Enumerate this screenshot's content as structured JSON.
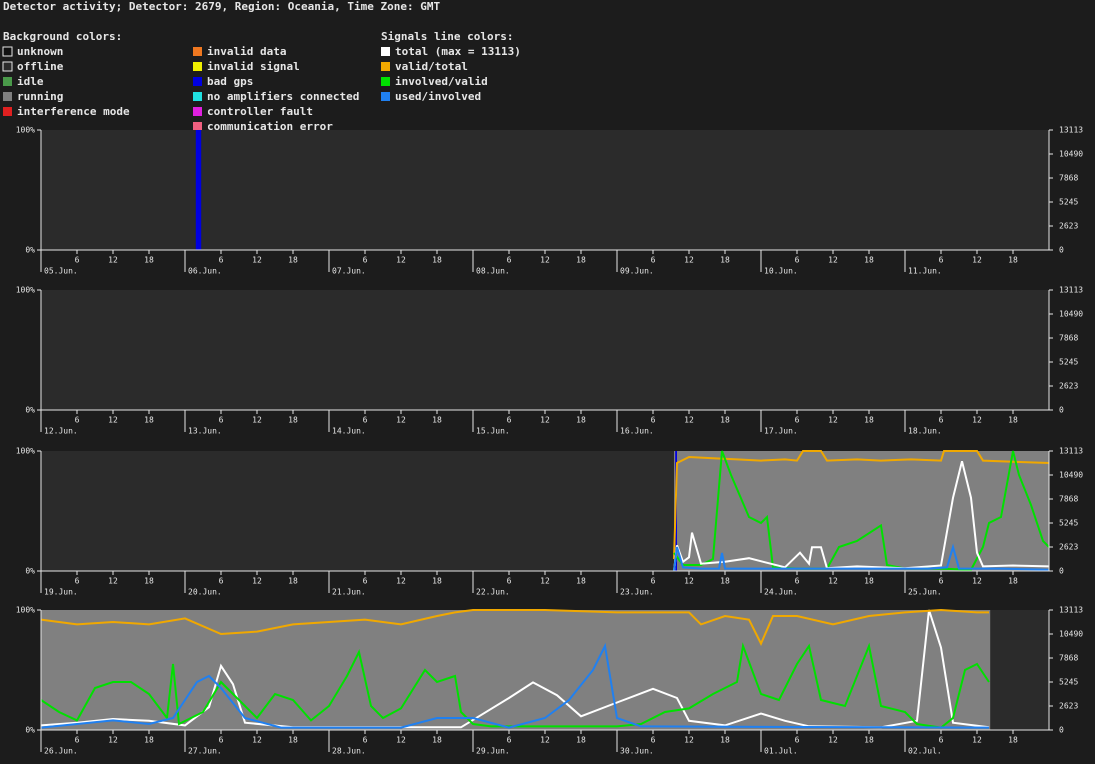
{
  "title": "Detector activity; Detector: 2679, Region: Oceania, Time Zone: GMT",
  "legend": {
    "background_title": "Background colors:",
    "background": [
      {
        "name": "unknown",
        "color": "#111111"
      },
      {
        "name": "offline",
        "color": "#2b2b2b"
      },
      {
        "name": "idle",
        "color": "#4a9a4a"
      },
      {
        "name": "running",
        "color": "#808080"
      },
      {
        "name": "interference mode",
        "color": "#e02020"
      },
      {
        "name": "invalid data",
        "color": "#f07820"
      },
      {
        "name": "invalid signal",
        "color": "#f0f000"
      },
      {
        "name": "bad gps",
        "color": "#0000e0"
      },
      {
        "name": "no amplifiers connected",
        "color": "#20e0e0"
      },
      {
        "name": "controller fault",
        "color": "#e020e0"
      },
      {
        "name": "communication error",
        "color": "#f06080"
      }
    ],
    "signals_title": "Signals line colors:"
  },
  "chart_data": [
    {
      "type": "line",
      "xlim": [
        0,
        168
      ],
      "ylim": [
        0,
        100
      ],
      "y2lim": [
        0,
        13113
      ],
      "yticks": [
        {
          "value": 0,
          "label": "0%"
        },
        {
          "value": 100,
          "label": "100%"
        }
      ],
      "y2ticks": [
        0,
        2623,
        5245,
        7868,
        10490,
        13113
      ],
      "xticks": [
        {
          "value": 0,
          "label": "05.Jun."
        },
        {
          "value": 24,
          "label": "06.Jun."
        },
        {
          "value": 48,
          "label": "07.Jun."
        },
        {
          "value": 72,
          "label": "08.Jun."
        },
        {
          "value": 96,
          "label": "09.Jun."
        },
        {
          "value": 120,
          "label": "10.Jun."
        },
        {
          "value": 144,
          "label": "11.Jun."
        }
      ],
      "minor_xticks": [
        {
          "value": 6,
          "label": "6"
        },
        {
          "value": 12,
          "label": "12"
        },
        {
          "value": 18,
          "label": "18"
        },
        {
          "value": 30,
          "label": "6"
        },
        {
          "value": 36,
          "label": "12"
        },
        {
          "value": 42,
          "label": "18"
        },
        {
          "value": 54,
          "label": "6"
        },
        {
          "value": 60,
          "label": "12"
        },
        {
          "value": 66,
          "label": "18"
        },
        {
          "value": 78,
          "label": "6"
        },
        {
          "value": 84,
          "label": "12"
        },
        {
          "value": 90,
          "label": "18"
        },
        {
          "value": 102,
          "label": "6"
        },
        {
          "value": 108,
          "label": "12"
        },
        {
          "value": 114,
          "label": "18"
        },
        {
          "value": 126,
          "label": "6"
        },
        {
          "value": 132,
          "label": "12"
        },
        {
          "value": 138,
          "label": "18"
        },
        {
          "value": 150,
          "label": "6"
        },
        {
          "value": 156,
          "label": "12"
        },
        {
          "value": 162,
          "label": "18"
        }
      ],
      "segments": [
        {
          "start": 25.8,
          "end": 26.7,
          "color": "#0000e0"
        }
      ],
      "series": []
    },
    {
      "type": "line",
      "xlim": [
        0,
        168
      ],
      "ylim": [
        0,
        100
      ],
      "y2lim": [
        0,
        13113
      ],
      "yticks": [
        {
          "value": 0,
          "label": "0%"
        },
        {
          "value": 100,
          "label": "100%"
        }
      ],
      "y2ticks": [
        0,
        2623,
        5245,
        7868,
        10490,
        13113
      ],
      "xticks": [
        {
          "value": 0,
          "label": "12.Jun."
        },
        {
          "value": 24,
          "label": "13.Jun."
        },
        {
          "value": 48,
          "label": "14.Jun."
        },
        {
          "value": 72,
          "label": "15.Jun."
        },
        {
          "value": 96,
          "label": "16.Jun."
        },
        {
          "value": 120,
          "label": "17.Jun."
        },
        {
          "value": 144,
          "label": "18.Jun."
        }
      ],
      "minor_xticks": [
        {
          "value": 6,
          "label": "6"
        },
        {
          "value": 12,
          "label": "12"
        },
        {
          "value": 18,
          "label": "18"
        },
        {
          "value": 30,
          "label": "6"
        },
        {
          "value": 36,
          "label": "12"
        },
        {
          "value": 42,
          "label": "18"
        },
        {
          "value": 54,
          "label": "6"
        },
        {
          "value": 60,
          "label": "12"
        },
        {
          "value": 66,
          "label": "18"
        },
        {
          "value": 78,
          "label": "6"
        },
        {
          "value": 84,
          "label": "12"
        },
        {
          "value": 90,
          "label": "18"
        },
        {
          "value": 102,
          "label": "6"
        },
        {
          "value": 108,
          "label": "12"
        },
        {
          "value": 114,
          "label": "18"
        },
        {
          "value": 126,
          "label": "6"
        },
        {
          "value": 132,
          "label": "12"
        },
        {
          "value": 138,
          "label": "18"
        },
        {
          "value": 150,
          "label": "6"
        },
        {
          "value": 156,
          "label": "12"
        },
        {
          "value": 162,
          "label": "18"
        }
      ],
      "segments": [],
      "series": []
    },
    {
      "type": "line",
      "xlim": [
        0,
        168
      ],
      "ylim": [
        0,
        100
      ],
      "y2lim": [
        0,
        13113
      ],
      "yticks": [
        {
          "value": 0,
          "label": "0%"
        },
        {
          "value": 100,
          "label": "100%"
        }
      ],
      "y2ticks": [
        0,
        2623,
        5245,
        7868,
        10490,
        13113
      ],
      "xticks": [
        {
          "value": 0,
          "label": "19.Jun."
        },
        {
          "value": 24,
          "label": "20.Jun."
        },
        {
          "value": 48,
          "label": "21.Jun."
        },
        {
          "value": 72,
          "label": "22.Jun."
        },
        {
          "value": 96,
          "label": "23.Jun."
        },
        {
          "value": 120,
          "label": "24.Jun."
        },
        {
          "value": 144,
          "label": "25.Jun."
        }
      ],
      "minor_xticks": [
        {
          "value": 6,
          "label": "6"
        },
        {
          "value": 12,
          "label": "12"
        },
        {
          "value": 18,
          "label": "18"
        },
        {
          "value": 30,
          "label": "6"
        },
        {
          "value": 36,
          "label": "12"
        },
        {
          "value": 42,
          "label": "18"
        },
        {
          "value": 54,
          "label": "6"
        },
        {
          "value": 60,
          "label": "12"
        },
        {
          "value": 66,
          "label": "18"
        },
        {
          "value": 78,
          "label": "6"
        },
        {
          "value": 84,
          "label": "12"
        },
        {
          "value": 90,
          "label": "18"
        },
        {
          "value": 102,
          "label": "6"
        },
        {
          "value": 108,
          "label": "12"
        },
        {
          "value": 114,
          "label": "18"
        },
        {
          "value": 126,
          "label": "6"
        },
        {
          "value": 132,
          "label": "12"
        },
        {
          "value": 138,
          "label": "18"
        },
        {
          "value": 150,
          "label": "6"
        },
        {
          "value": 156,
          "label": "12"
        },
        {
          "value": 162,
          "label": "18"
        }
      ],
      "segments": [
        {
          "start": 105.5,
          "end": 168,
          "color": "#808080"
        },
        {
          "start": 105.7,
          "end": 106.0,
          "color": "#0000e0"
        }
      ],
      "series": [
        {
          "name": "valid/total",
          "color": "#f0a800",
          "x": [
            105.5,
            106,
            108,
            112,
            116,
            120,
            124,
            126,
            127,
            130,
            131,
            136,
            140,
            145,
            150,
            150.5,
            156,
            157,
            162,
            168
          ],
          "values": [
            10,
            90,
            95,
            94,
            93,
            92,
            93,
            92,
            100,
            100,
            92,
            93,
            92,
            93,
            92,
            100,
            100,
            92,
            91,
            90
          ]
        },
        {
          "name": "involved/valid",
          "color": "#00e000",
          "x": [
            105.5,
            107,
            110,
            112,
            113.5,
            115,
            118,
            120,
            121,
            122,
            126,
            131,
            133,
            136,
            140,
            141,
            144,
            150,
            155,
            157,
            158,
            160,
            162,
            163,
            165,
            167,
            168
          ],
          "values": [
            15,
            5,
            5,
            10,
            100,
            80,
            45,
            40,
            45,
            3,
            2,
            2,
            20,
            25,
            38,
            5,
            2,
            2,
            1,
            20,
            40,
            45,
            100,
            80,
            55,
            25,
            20
          ]
        },
        {
          "name": "total (max = 13113)",
          "color": "#ffffff",
          "axis": "y2",
          "x": [
            105.5,
            106,
            107,
            108,
            108.5,
            110,
            114,
            118,
            124,
            126.5,
            128,
            128.5,
            130,
            131,
            136,
            144,
            150,
            152,
            153.5,
            155,
            156,
            157,
            162,
            168
          ],
          "values": [
            0,
            2800,
            1000,
            1500,
            4200,
            800,
            1000,
            1400,
            400,
            2000,
            800,
            2600,
            2600,
            300,
            500,
            300,
            600,
            8000,
            12000,
            8000,
            2000,
            500,
            600,
            500
          ]
        },
        {
          "name": "used/involved",
          "color": "#2080f0",
          "x": [
            105.5,
            106,
            107,
            110,
            113,
            113.5,
            114,
            120,
            140,
            148,
            151,
            152,
            153,
            160,
            168
          ],
          "values": [
            0,
            20,
            3,
            2,
            2,
            15,
            2,
            2,
            2,
            2,
            3,
            20,
            2,
            2,
            1
          ]
        }
      ]
    },
    {
      "type": "line",
      "xlim": [
        0,
        168
      ],
      "ylim": [
        0,
        100
      ],
      "y2lim": [
        0,
        13113
      ],
      "yticks": [
        {
          "value": 0,
          "label": "0%"
        },
        {
          "value": 100,
          "label": "100%"
        }
      ],
      "y2ticks": [
        0,
        2623,
        5245,
        7868,
        10490,
        13113
      ],
      "xticks": [
        {
          "value": 0,
          "label": "26.Jun."
        },
        {
          "value": 24,
          "label": "27.Jun."
        },
        {
          "value": 48,
          "label": "28.Jun."
        },
        {
          "value": 72,
          "label": "29.Jun."
        },
        {
          "value": 96,
          "label": "30.Jun."
        },
        {
          "value": 120,
          "label": "01.Jul."
        },
        {
          "value": 144,
          "label": "02.Jul."
        }
      ],
      "minor_xticks": [
        {
          "value": 6,
          "label": "6"
        },
        {
          "value": 12,
          "label": "12"
        },
        {
          "value": 18,
          "label": "18"
        },
        {
          "value": 30,
          "label": "6"
        },
        {
          "value": 36,
          "label": "12"
        },
        {
          "value": 42,
          "label": "18"
        },
        {
          "value": 54,
          "label": "6"
        },
        {
          "value": 60,
          "label": "12"
        },
        {
          "value": 66,
          "label": "18"
        },
        {
          "value": 78,
          "label": "6"
        },
        {
          "value": 84,
          "label": "12"
        },
        {
          "value": 90,
          "label": "18"
        },
        {
          "value": 102,
          "label": "6"
        },
        {
          "value": 108,
          "label": "12"
        },
        {
          "value": 114,
          "label": "18"
        },
        {
          "value": 126,
          "label": "6"
        },
        {
          "value": 132,
          "label": "12"
        },
        {
          "value": 138,
          "label": "18"
        },
        {
          "value": 150,
          "label": "6"
        },
        {
          "value": 156,
          "label": "12"
        },
        {
          "value": 162,
          "label": "18"
        }
      ],
      "segments": [
        {
          "start": 0,
          "end": 158.2,
          "color": "#808080"
        }
      ],
      "series": [
        {
          "name": "total (max = 13113)",
          "color": "#ffffff",
          "axis": "y2",
          "x": [
            0,
            6,
            12,
            18,
            24,
            28,
            30,
            32,
            34,
            42,
            48,
            60,
            70,
            78,
            82,
            86,
            90,
            96,
            102,
            106,
            108,
            114,
            120,
            124,
            128,
            140,
            146,
            148,
            150,
            152,
            158
          ],
          "values": [
            500,
            800,
            1200,
            1000,
            500,
            2500,
            7000,
            5000,
            800,
            300,
            300,
            300,
            300,
            3500,
            5200,
            3800,
            1500,
            3000,
            4500,
            3500,
            1000,
            500,
            1800,
            1000,
            400,
            300,
            1000,
            13113,
            9000,
            800,
            300
          ]
        },
        {
          "name": "valid/total",
          "color": "#f0a800",
          "x": [
            0,
            6,
            12,
            18,
            24,
            30,
            36,
            42,
            48,
            54,
            60,
            66,
            69,
            72,
            84,
            96,
            108,
            110,
            114,
            118,
            120,
            122,
            126,
            132,
            138,
            144,
            150,
            156,
            158
          ],
          "values": [
            92,
            88,
            90,
            88,
            93,
            80,
            82,
            88,
            90,
            92,
            88,
            95,
            98,
            100,
            100,
            98,
            98,
            88,
            95,
            92,
            72,
            95,
            95,
            88,
            95,
            98,
            100,
            98,
            98
          ]
        },
        {
          "name": "involved/valid",
          "color": "#00e000",
          "x": [
            0,
            3,
            6,
            9,
            12,
            15,
            18,
            21,
            22,
            23,
            27,
            30,
            33,
            36,
            39,
            42,
            45,
            48,
            51,
            53,
            55,
            57,
            60,
            64,
            66,
            69,
            70,
            72,
            75,
            78,
            84,
            90,
            96,
            100,
            104,
            108,
            112,
            116,
            117,
            120,
            123,
            126,
            128,
            130,
            134,
            138,
            140,
            144,
            146,
            150,
            152,
            154,
            156,
            158
          ],
          "values": [
            25,
            15,
            8,
            35,
            40,
            40,
            30,
            10,
            55,
            5,
            15,
            40,
            25,
            10,
            30,
            25,
            8,
            20,
            45,
            65,
            20,
            10,
            18,
            50,
            40,
            45,
            15,
            5,
            3,
            3,
            3,
            3,
            3,
            5,
            15,
            18,
            30,
            40,
            70,
            30,
            25,
            55,
            70,
            25,
            20,
            70,
            20,
            15,
            5,
            2,
            10,
            50,
            55,
            40
          ]
        },
        {
          "name": "used/involved",
          "color": "#2080f0",
          "x": [
            0,
            12,
            18,
            22,
            26,
            28,
            30,
            34,
            40,
            60,
            66,
            72,
            78,
            84,
            88,
            92,
            94,
            96,
            100,
            158
          ],
          "values": [
            2,
            8,
            5,
            10,
            40,
            45,
            35,
            10,
            2,
            2,
            10,
            10,
            2,
            10,
            25,
            50,
            70,
            10,
            3,
            2
          ]
        }
      ]
    }
  ]
}
